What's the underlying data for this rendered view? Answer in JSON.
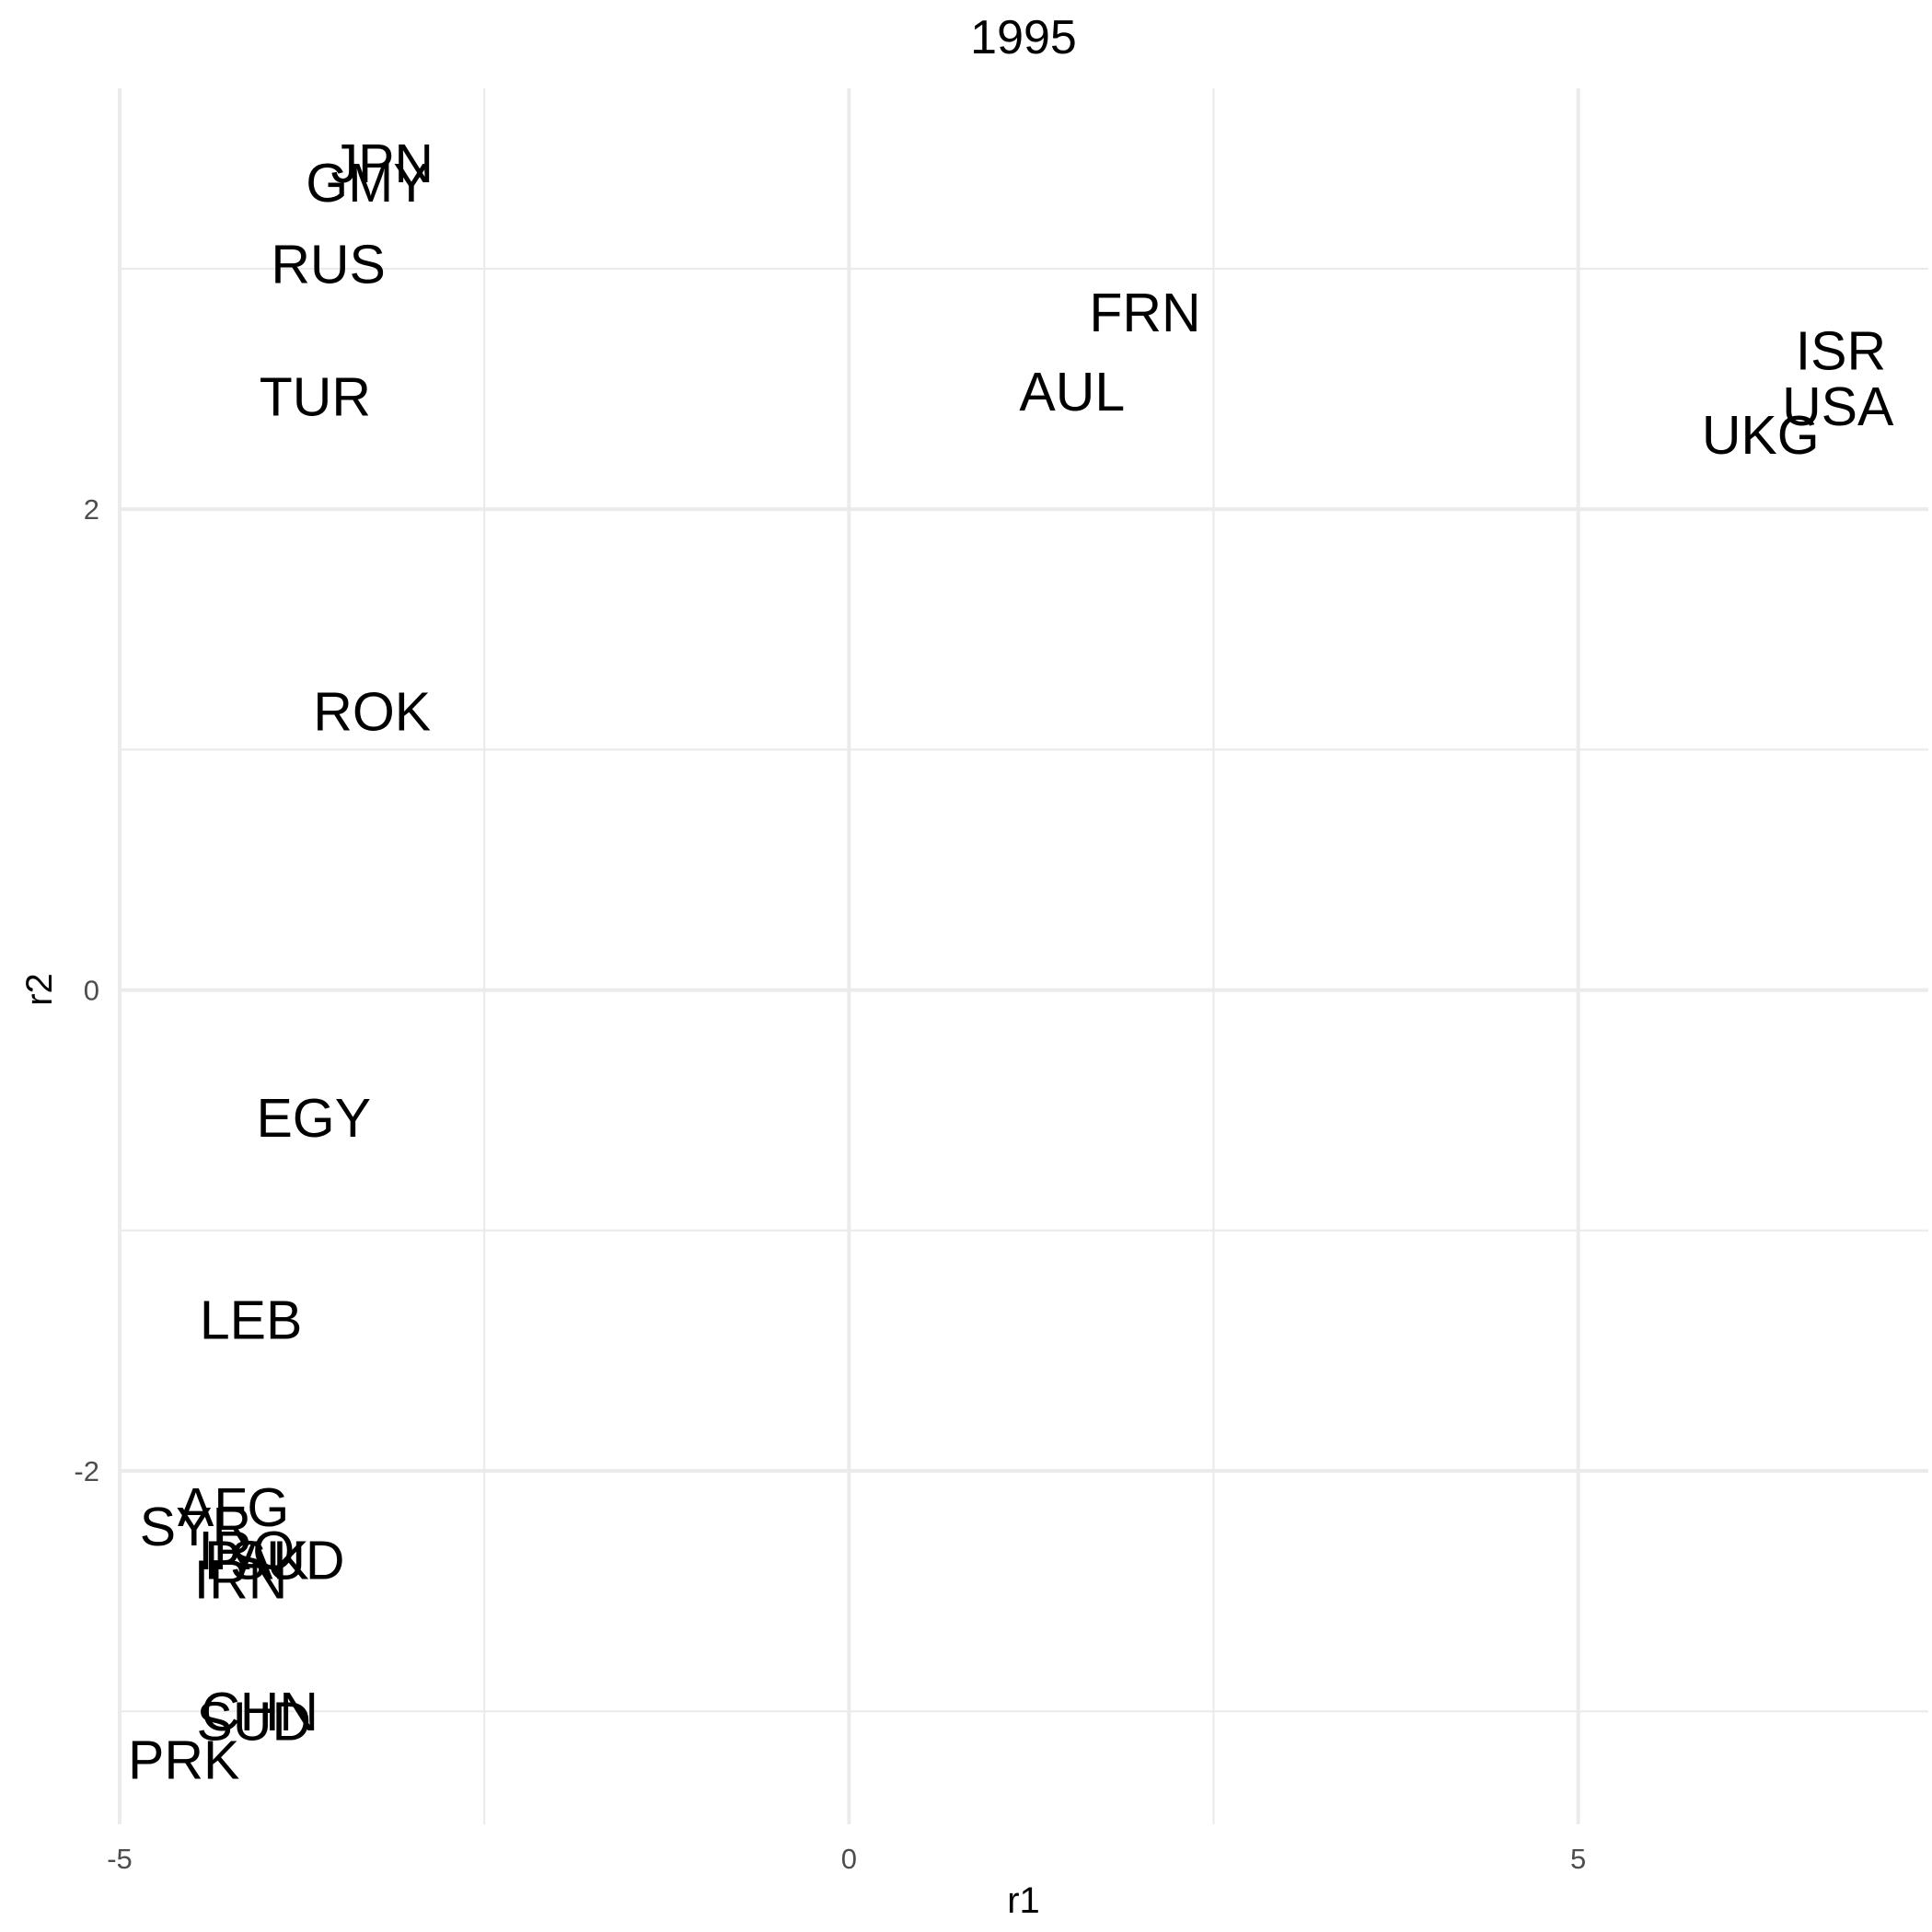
{
  "chart_data": {
    "type": "scatter",
    "title": "1995",
    "xlabel": "r1",
    "ylabel": "r2",
    "xlim": [
      -5,
      7.4
    ],
    "ylim": [
      -3.47,
      3.75
    ],
    "x_major_ticks": [
      -5,
      0,
      5
    ],
    "x_minor_ticks": [
      -2.5,
      2.5
    ],
    "y_major_ticks": [
      -2,
      0,
      2
    ],
    "y_minor_ticks": [
      -3,
      -1,
      1,
      3
    ],
    "x_tick_labels": [
      "-5",
      "0",
      "5"
    ],
    "y_tick_labels": [
      "-2",
      "0",
      "2"
    ],
    "grid": true,
    "legend": "none",
    "points": [
      {
        "label": "JPN",
        "x": -3.2,
        "y": 3.44
      },
      {
        "label": "GMY",
        "x": -3.3,
        "y": 3.36
      },
      {
        "label": "RUS",
        "x": -3.57,
        "y": 3.02
      },
      {
        "label": "FRN",
        "x": 2.03,
        "y": 2.82
      },
      {
        "label": "ISR",
        "x": 6.8,
        "y": 2.66
      },
      {
        "label": "TUR",
        "x": -3.66,
        "y": 2.47
      },
      {
        "label": "AUL",
        "x": 1.53,
        "y": 2.49
      },
      {
        "label": "USA",
        "x": 6.78,
        "y": 2.43
      },
      {
        "label": "UKG",
        "x": 6.25,
        "y": 2.31
      },
      {
        "label": "ROK",
        "x": -3.27,
        "y": 1.16
      },
      {
        "label": "EGY",
        "x": -3.67,
        "y": -0.53
      },
      {
        "label": "LEB",
        "x": -4.1,
        "y": -1.37
      },
      {
        "label": "AFG",
        "x": -4.22,
        "y": -2.15
      },
      {
        "label": "SYR",
        "x": -4.48,
        "y": -2.23
      },
      {
        "label": "IRQ",
        "x": -4.13,
        "y": -2.33
      },
      {
        "label": "PAK",
        "x": -4.06,
        "y": -2.37
      },
      {
        "label": "SUD",
        "x": -3.85,
        "y": -2.37
      },
      {
        "label": "IRN",
        "x": -4.17,
        "y": -2.45
      },
      {
        "label": "CHN",
        "x": -4.04,
        "y": -3.0
      },
      {
        "label": "SUD",
        "x": -4.08,
        "y": -3.04
      },
      {
        "label": "PRK",
        "x": -4.56,
        "y": -3.2
      }
    ]
  }
}
